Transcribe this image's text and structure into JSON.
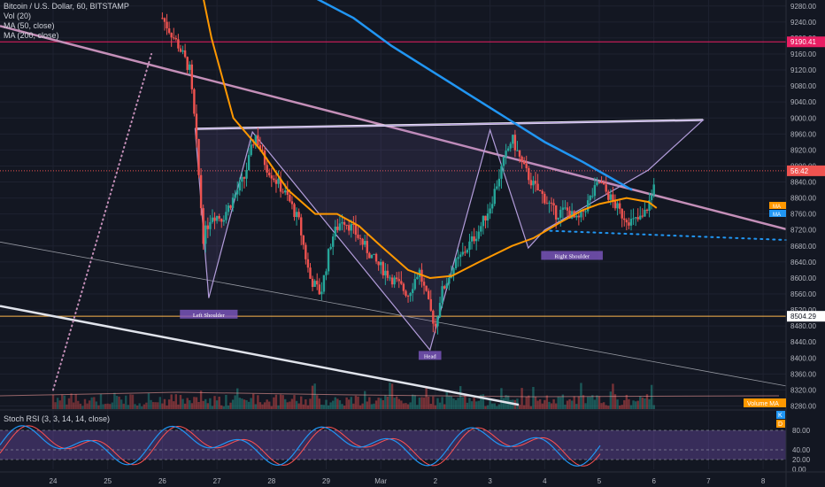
{
  "legend": {
    "symbol": "Bitcoin / U.S. Dollar, 60, BITSTAMP",
    "vol": "Vol (20)",
    "ma50": "MA (50, close)",
    "ma200": "MA (200, close)",
    "stoch": "Stoch RSI (3, 3, 14, 14, close)"
  },
  "colors": {
    "background": "#131722",
    "up": "#26a69a",
    "down": "#ef5350",
    "ma50": "#ff9800",
    "ma200": "#2196f3",
    "trendline": "#c48fb8",
    "pattern": "#b39ddb",
    "resistance": "#e91e63",
    "support": "#ffb74d",
    "stochK": "#2196f3",
    "stochD": "#ff5252"
  },
  "chart_data": {
    "type": "candlestick",
    "x_ticks": [
      "24",
      "25",
      "26",
      "27",
      "28",
      "29",
      "Mar",
      "2",
      "3",
      "4",
      "5",
      "6",
      "7",
      "8"
    ],
    "y_ticks": [
      "9280.00",
      "9240.00",
      "9200.00",
      "9160.00",
      "9120.00",
      "9080.00",
      "9040.00",
      "9000.00",
      "8960.00",
      "8920.00",
      "8880.00",
      "8840.00",
      "8800.00",
      "8760.00",
      "8720.00",
      "8680.00",
      "8640.00",
      "8600.00",
      "8560.00",
      "8520.00",
      "8480.00",
      "8440.00",
      "8400.00",
      "8360.00",
      "8320.00",
      "8280.00"
    ],
    "ylim": [
      8270,
      9295
    ],
    "price_labels": {
      "resistance": "9190.41",
      "current": "56:42",
      "support": "8504.29",
      "ma_tag1": "MA",
      "ma_tag2": "MA",
      "volume_ma": "Volume MA"
    },
    "levels": {
      "resistance": 9190.41,
      "support": 8504.29,
      "current": 8868
    },
    "pattern_labels": [
      "Left Shoulder",
      "Head",
      "Right Shoulder"
    ],
    "stoch_ticks": [
      "80.00",
      "40.00",
      "20.00",
      "0.00"
    ],
    "stoch_tags": [
      "K",
      "D"
    ],
    "ma50_path": [
      [
        26.6,
        9400
      ],
      [
        26.9,
        9200
      ],
      [
        27.3,
        9000
      ],
      [
        27.8,
        8920
      ],
      [
        28.3,
        8820
      ],
      [
        28.8,
        8760
      ],
      [
        29.2,
        8760
      ],
      [
        29.6,
        8730
      ],
      [
        30.0,
        8680
      ],
      [
        30.5,
        8620
      ],
      [
        30.9,
        8600
      ],
      [
        31.3,
        8605
      ],
      [
        31.8,
        8640
      ],
      [
        32.4,
        8680
      ],
      [
        32.8,
        8700
      ],
      [
        33.3,
        8740
      ],
      [
        33.7,
        8770
      ],
      [
        34.0,
        8785
      ],
      [
        34.5,
        8800
      ],
      [
        34.9,
        8790
      ],
      [
        35.05,
        8775
      ]
    ],
    "ma200_path": [
      [
        28.8,
        9300
      ],
      [
        29.5,
        9250
      ],
      [
        30.2,
        9180
      ],
      [
        30.9,
        9120
      ],
      [
        31.6,
        9060
      ],
      [
        32.3,
        9000
      ],
      [
        33.0,
        8940
      ],
      [
        33.7,
        8890
      ],
      [
        34.6,
        8820
      ]
    ],
    "candles_note": "hourly BTC/USD candles from Feb 24 to Mar 5"
  }
}
